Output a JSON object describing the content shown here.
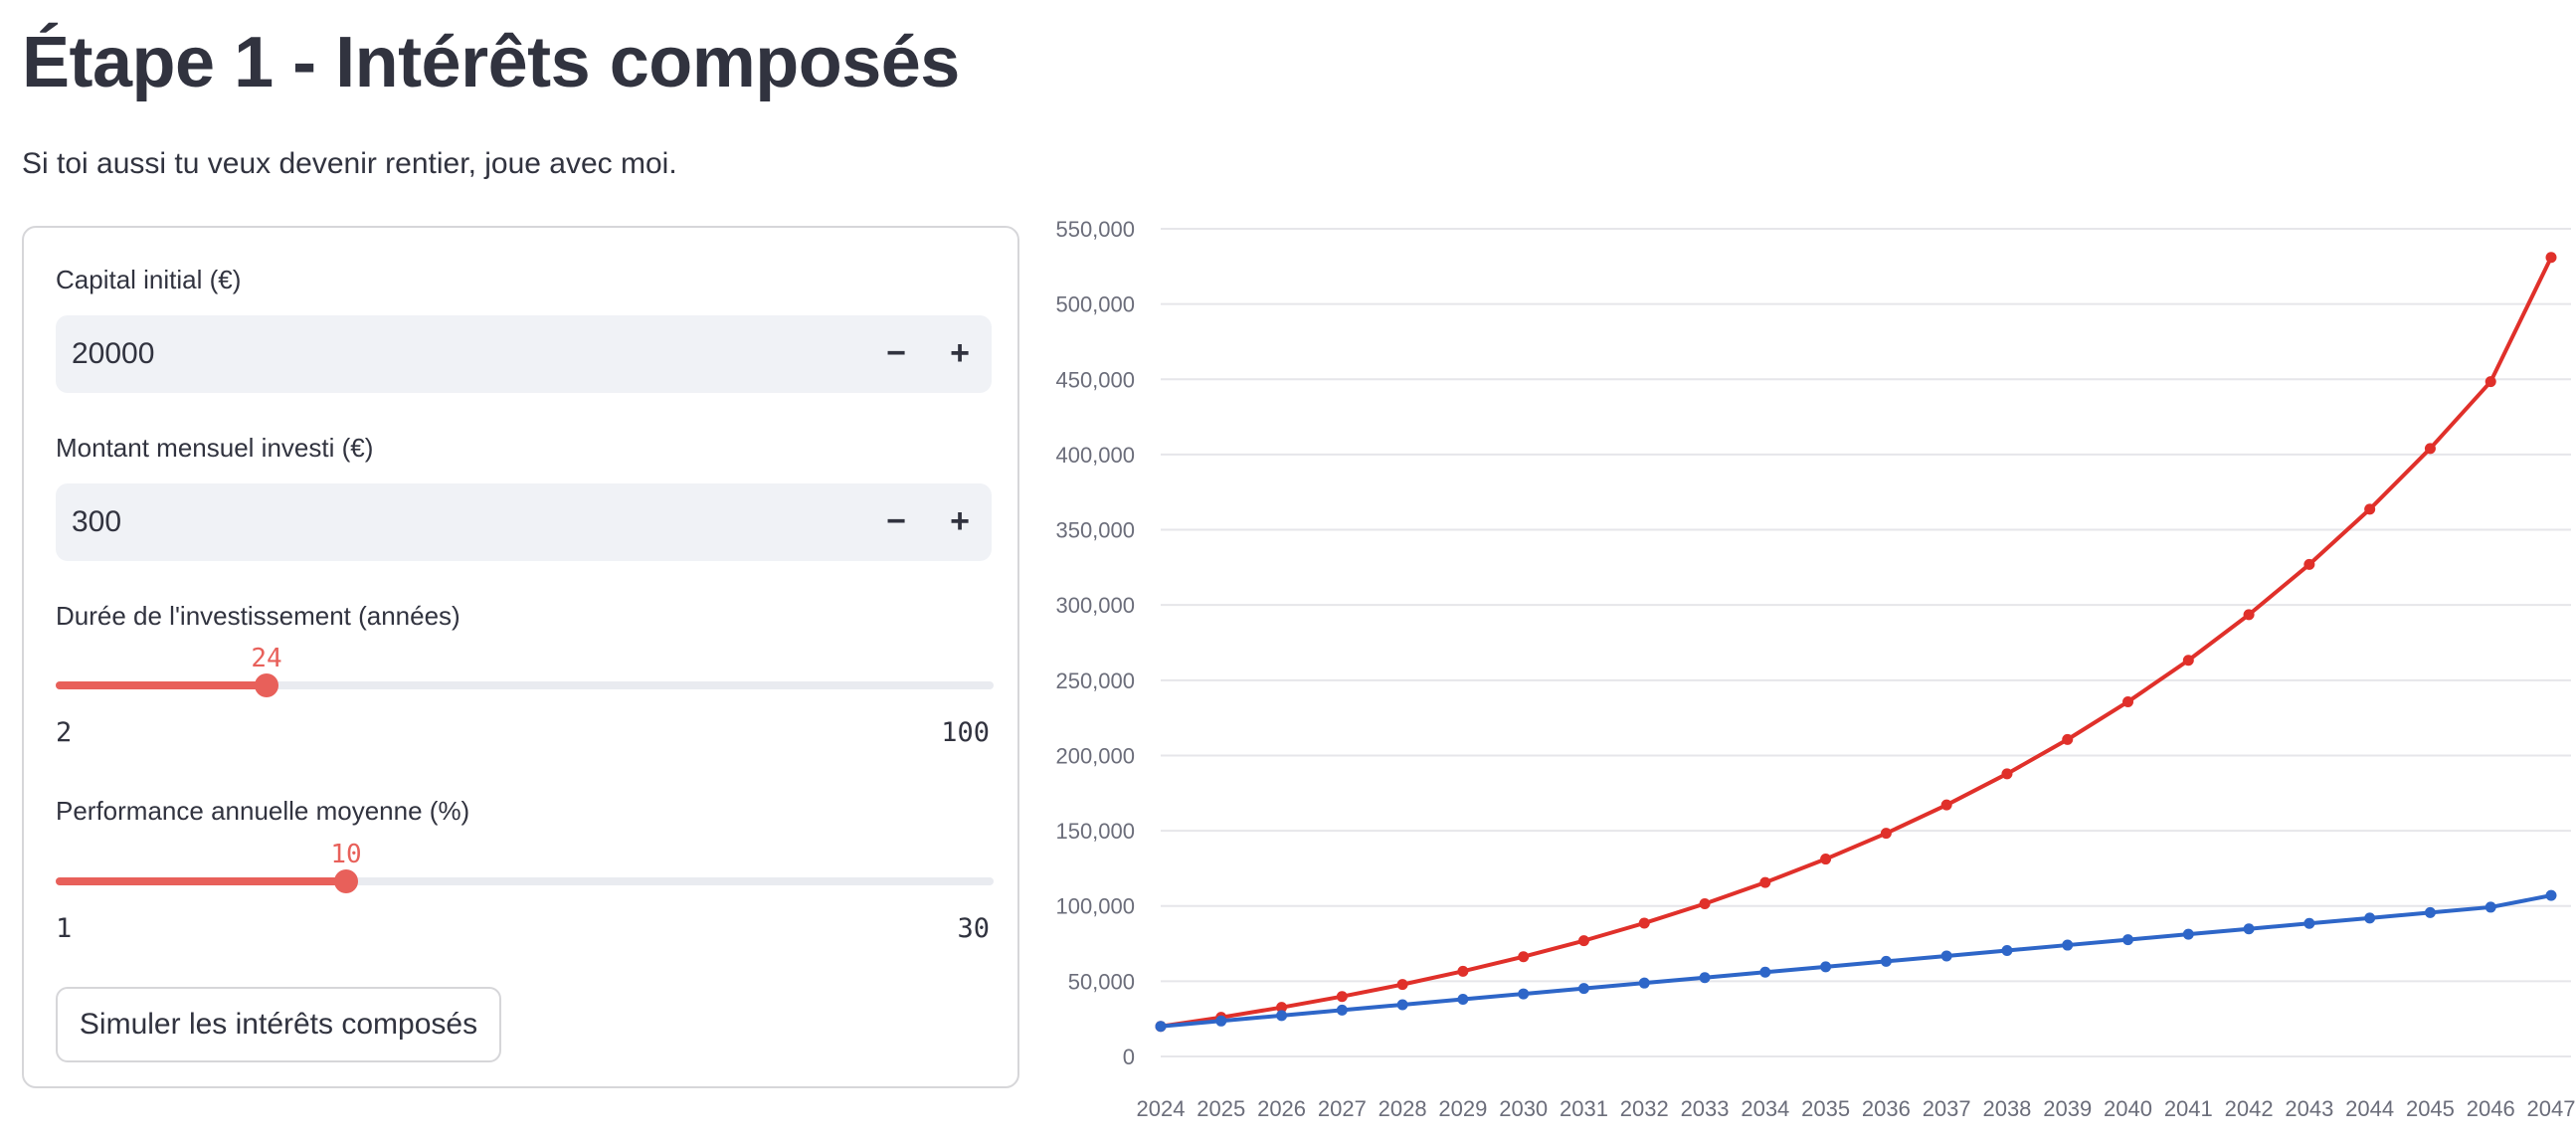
{
  "header": {
    "title": "Étape 1 - Intérêts composés",
    "subtitle": "Si toi aussi tu veux devenir rentier, joue avec moi."
  },
  "form": {
    "capital": {
      "label": "Capital initial (€)",
      "value": "20000",
      "minus": "−",
      "plus": "+"
    },
    "monthly": {
      "label": "Montant mensuel investi (€)",
      "value": "300",
      "minus": "−",
      "plus": "+"
    },
    "duration": {
      "label": "Durée de l'investissement (années)",
      "value": "24",
      "min": "2",
      "max": "100"
    },
    "performance": {
      "label": "Performance annuelle moyenne (%)",
      "value": "10",
      "min": "1",
      "max": "30"
    },
    "button_label": "Simuler les intérêts composés"
  },
  "colors": {
    "accent": "#e8605a",
    "line_compound": "#e0302a",
    "line_invested": "#2e66c8"
  },
  "chart_data": {
    "type": "line",
    "x": [
      2024,
      2025,
      2026,
      2027,
      2028,
      2029,
      2030,
      2031,
      2032,
      2033,
      2034,
      2035,
      2036,
      2037,
      2038,
      2039,
      2040,
      2041,
      2042,
      2043,
      2044,
      2045,
      2046,
      2047
    ],
    "xticks": [
      "2024",
      "2025",
      "2026",
      "2027",
      "2028",
      "2029",
      "2030",
      "2031",
      "2032",
      "2033",
      "2034",
      "2035",
      "2036",
      "2037",
      "2038",
      "2039",
      "2040",
      "2041",
      "2042",
      "2043",
      "2044",
      "2045",
      "2046",
      "2047"
    ],
    "yticks": [
      "0",
      "50,000",
      "100,000",
      "150,000",
      "200,000",
      "250,000",
      "300,000",
      "350,000",
      "400,000",
      "450,000",
      "500,000",
      "550,000"
    ],
    "ytick_values": [
      0,
      50000,
      100000,
      150000,
      200000,
      250000,
      300000,
      350000,
      400000,
      450000,
      500000,
      550000
    ],
    "ylim": [
      0,
      550000
    ],
    "grid": true,
    "series": [
      {
        "color": "#e0302a",
        "values": [
          20000,
          26000,
          32600,
          39860,
          47846,
          56631,
          66294,
          76923,
          88616,
          101477,
          115625,
          131187,
          148306,
          167136,
          187850,
          210635,
          235699,
          263268,
          293595,
          326955,
          363650,
          404015,
          448417,
          531000
        ]
      },
      {
        "color": "#2e66c8",
        "values": [
          20000,
          23600,
          27200,
          30800,
          34400,
          38000,
          41600,
          45200,
          48800,
          52400,
          56000,
          59600,
          63200,
          66800,
          70400,
          74000,
          77600,
          81200,
          84800,
          88400,
          92000,
          95600,
          99200,
          107000
        ]
      }
    ]
  }
}
